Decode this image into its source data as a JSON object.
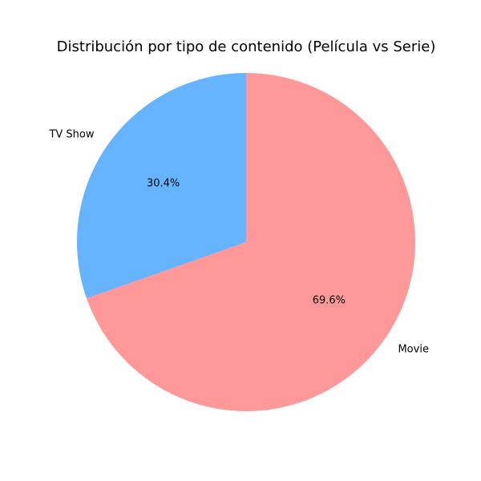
{
  "chart_data": {
    "type": "pie",
    "title": "Distribución por tipo de contenido (Película vs Serie)",
    "categories": [
      "Movie",
      "TV Show"
    ],
    "values": [
      69.6,
      30.4
    ],
    "value_labels": [
      "69.6%",
      "30.4%"
    ],
    "colors": [
      "#ff9999",
      "#66b3ff"
    ],
    "start_angle_deg": 90,
    "direction": "clockwise",
    "legend": "none"
  }
}
